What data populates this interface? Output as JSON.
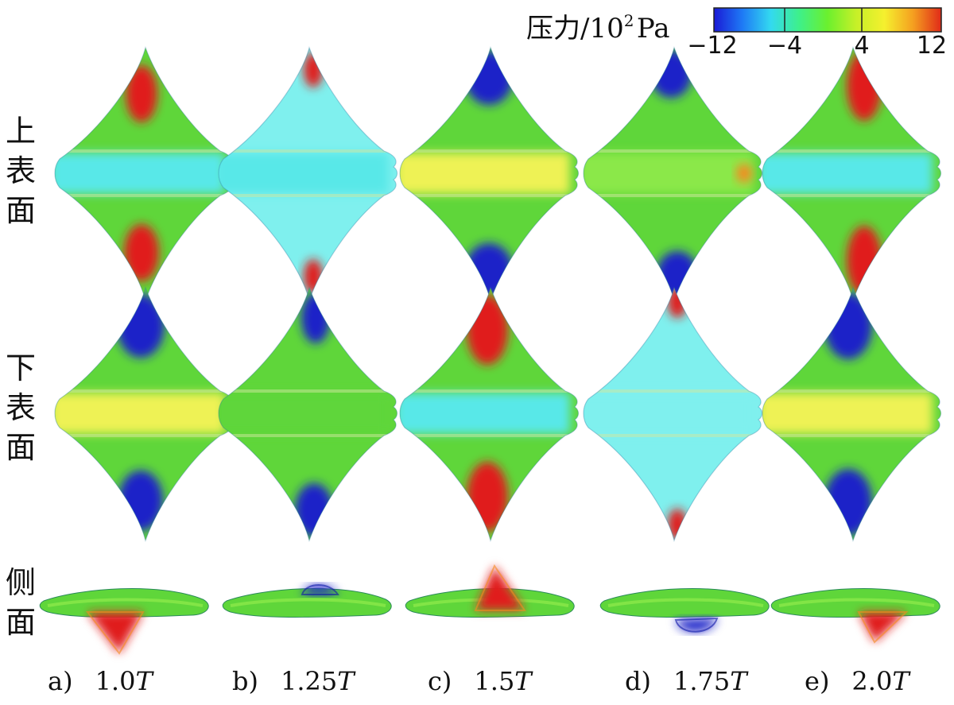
{
  "colorbar": {
    "title_prefix": "压力/10",
    "title_exp": "2",
    "title_unit": "Pa",
    "ticks": [
      "−12",
      "−4",
      "4",
      "12"
    ],
    "colors": [
      "#1a1ad6",
      "#1e7af5",
      "#33d9f0",
      "#3ef08a",
      "#6bf02e",
      "#c6f028",
      "#f5f02e",
      "#f5a020",
      "#e02a18"
    ]
  },
  "rows": [
    {
      "label": [
        "上",
        "表",
        "面"
      ]
    },
    {
      "label": [
        "下",
        "表",
        "面"
      ]
    },
    {
      "label": [
        "侧",
        "面"
      ]
    }
  ],
  "columns": [
    {
      "letter": "a)",
      "num": "1.0",
      "unit": "T"
    },
    {
      "letter": "b)",
      "num": "1.25",
      "unit": "T"
    },
    {
      "letter": "c)",
      "num": "1.5",
      "unit": "T"
    },
    {
      "letter": "d)",
      "num": "1.75",
      "unit": "T"
    },
    {
      "letter": "e)",
      "num": "2.0",
      "unit": "T"
    }
  ],
  "palette": {
    "red": "#e01e1e",
    "orange": "#f58a20",
    "yellow": "#eef255",
    "green": "#5fd63a",
    "light_green": "#8be84a",
    "cyan": "#58e8e8",
    "light_cyan": "#7ff0ee",
    "blue": "#1a22c8",
    "dark_blue": "#0f17a8"
  }
}
